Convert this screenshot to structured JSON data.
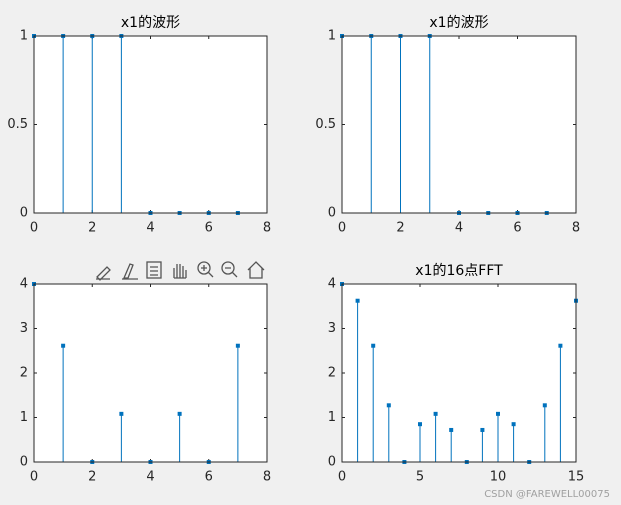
{
  "chart_data": [
    {
      "type": "stem",
      "title": "x1的波形",
      "x": [
        0,
        1,
        2,
        3,
        4,
        5,
        6,
        7
      ],
      "values": [
        1,
        1,
        1,
        1,
        0,
        0,
        0,
        0
      ],
      "color": "#0072bd",
      "xlim": [
        0,
        8
      ],
      "xticks": [
        0,
        2,
        4,
        6,
        8
      ],
      "ylim": [
        0,
        1
      ],
      "yticks": [
        0,
        0.5,
        1
      ]
    },
    {
      "type": "stem",
      "title": "x1的波形",
      "x": [
        0,
        1,
        2,
        3,
        4,
        5,
        6,
        7
      ],
      "values": [
        1,
        1,
        1,
        1,
        0,
        0,
        0,
        0
      ],
      "color": "#0072bd",
      "xlim": [
        0,
        8
      ],
      "xticks": [
        0,
        2,
        4,
        6,
        8
      ],
      "ylim": [
        0,
        1
      ],
      "yticks": [
        0,
        0.5,
        1
      ]
    },
    {
      "type": "stem",
      "x": [
        0,
        1,
        2,
        3,
        4,
        5,
        6,
        7
      ],
      "values": [
        4,
        2.613,
        0,
        1.082,
        0,
        1.082,
        0,
        2.613
      ],
      "color": "#0072bd",
      "xlim": [
        0,
        8
      ],
      "xticks": [
        0,
        2,
        4,
        6,
        8
      ],
      "ylim": [
        0,
        4
      ],
      "yticks": [
        0,
        1,
        2,
        3,
        4
      ]
    },
    {
      "type": "stem",
      "title": "x1的16点FFT",
      "x": [
        0,
        1,
        2,
        3,
        4,
        5,
        6,
        7,
        8,
        9,
        10,
        11,
        12,
        13,
        14,
        15
      ],
      "values": [
        4,
        3.624,
        2.613,
        1.274,
        0,
        0.85,
        1.082,
        0.72,
        0,
        0.72,
        1.082,
        0.85,
        0,
        1.274,
        2.613,
        3.624
      ],
      "color": "#0072bd",
      "xlim": [
        0,
        15
      ],
      "xticks": [
        0,
        5,
        10,
        15
      ],
      "ylim": [
        0,
        4
      ],
      "yticks": [
        0,
        1,
        2,
        3,
        4
      ]
    }
  ],
  "watermark": "CSDN @FAREWELL00075"
}
